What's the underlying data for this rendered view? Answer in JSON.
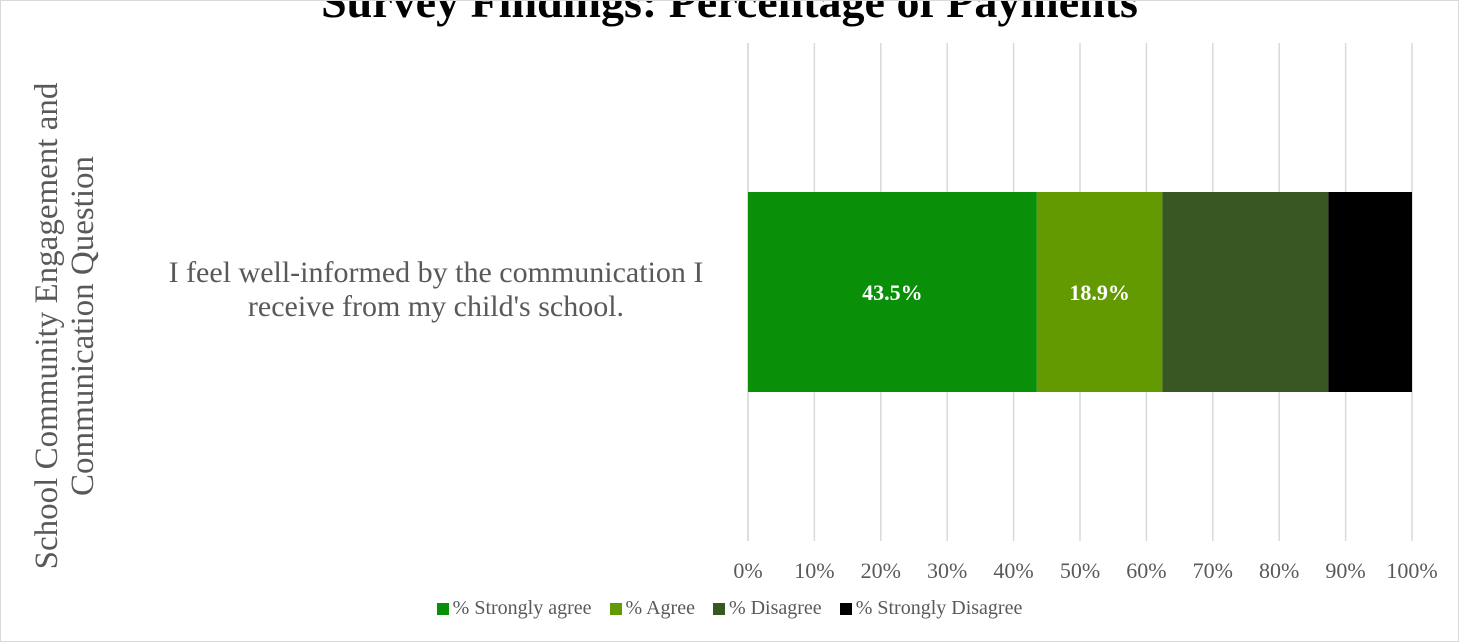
{
  "chart_data": {
    "type": "bar",
    "orientation": "horizontal",
    "stacked": true,
    "title": "Survey Findings: Percentage of Payments",
    "ylabel": "School Community Engagement and Communication Question",
    "categories": [
      "I feel well-informed by the communication I receive from my child's school."
    ],
    "series": [
      {
        "name": "% Strongly agree",
        "values": [
          43.5
        ],
        "color": "#0a8f08",
        "label": "43.5%"
      },
      {
        "name": "% Agree",
        "values": [
          18.9
        ],
        "color": "#639a02",
        "label": "18.9%"
      },
      {
        "name": "% Disagree",
        "values": [
          25.0
        ],
        "color": "#385723",
        "label": ""
      },
      {
        "name": "% Strongly Disagree",
        "values": [
          12.6
        ],
        "color": "#000000",
        "label": ""
      }
    ],
    "xlim": [
      0,
      100
    ],
    "x_ticks": [
      "0%",
      "10%",
      "20%",
      "30%",
      "40%",
      "50%",
      "60%",
      "70%",
      "80%",
      "90%",
      "100%"
    ],
    "grid": true,
    "legend_position": "bottom"
  }
}
